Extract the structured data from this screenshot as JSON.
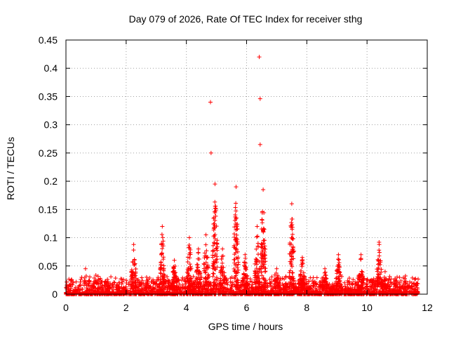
{
  "chart_data": {
    "type": "scatter",
    "title": "Day 079 of 2026, Rate Of TEC Index for receiver sthg",
    "xlabel": "GPS time / hours",
    "ylabel": "ROTI / TECUs",
    "xlim": [
      0,
      12
    ],
    "ylim": [
      0,
      0.45
    ],
    "xticks": [
      0,
      2,
      4,
      6,
      8,
      10,
      12
    ],
    "yticks": [
      0,
      0.05,
      0.1,
      0.15,
      0.2,
      0.25,
      0.3,
      0.35,
      0.4,
      0.45
    ],
    "xtick_labels": [
      "0",
      "2",
      "4",
      "6",
      "8",
      "10",
      "12"
    ],
    "ytick_labels": [
      "0",
      "0.05",
      "0.1",
      "0.15",
      "0.2",
      "0.25",
      "0.3",
      "0.35",
      "0.4",
      "0.45"
    ],
    "grid": true,
    "marker": "+",
    "series_color": "#ff0000",
    "baseline_noise": {
      "x_start": 0,
      "x_end": 11.7,
      "typical_max": 0.035
    },
    "outliers": [
      {
        "x": 4.8,
        "y": 0.34
      },
      {
        "x": 4.82,
        "y": 0.25
      },
      {
        "x": 6.42,
        "y": 0.42
      },
      {
        "x": 6.45,
        "y": 0.346
      },
      {
        "x": 6.45,
        "y": 0.265
      },
      {
        "x": 0.65,
        "y": 0.045
      }
    ],
    "bursts": [
      {
        "center": 2.25,
        "peak": 0.088
      },
      {
        "center": 3.2,
        "peak": 0.12
      },
      {
        "center": 3.6,
        "peak": 0.06
      },
      {
        "center": 4.1,
        "peak": 0.1
      },
      {
        "center": 4.4,
        "peak": 0.08
      },
      {
        "center": 4.65,
        "peak": 0.105
      },
      {
        "center": 4.95,
        "peak": 0.195
      },
      {
        "center": 5.2,
        "peak": 0.08
      },
      {
        "center": 5.65,
        "peak": 0.19
      },
      {
        "center": 5.95,
        "peak": 0.07
      },
      {
        "center": 6.35,
        "peak": 0.12
      },
      {
        "center": 6.55,
        "peak": 0.185
      },
      {
        "center": 7.0,
        "peak": 0.045
      },
      {
        "center": 7.5,
        "peak": 0.16
      },
      {
        "center": 7.85,
        "peak": 0.065
      },
      {
        "center": 8.6,
        "peak": 0.045
      },
      {
        "center": 9.05,
        "peak": 0.07
      },
      {
        "center": 9.8,
        "peak": 0.07
      },
      {
        "center": 10.4,
        "peak": 0.092
      },
      {
        "center": 10.6,
        "peak": 0.04
      }
    ]
  }
}
